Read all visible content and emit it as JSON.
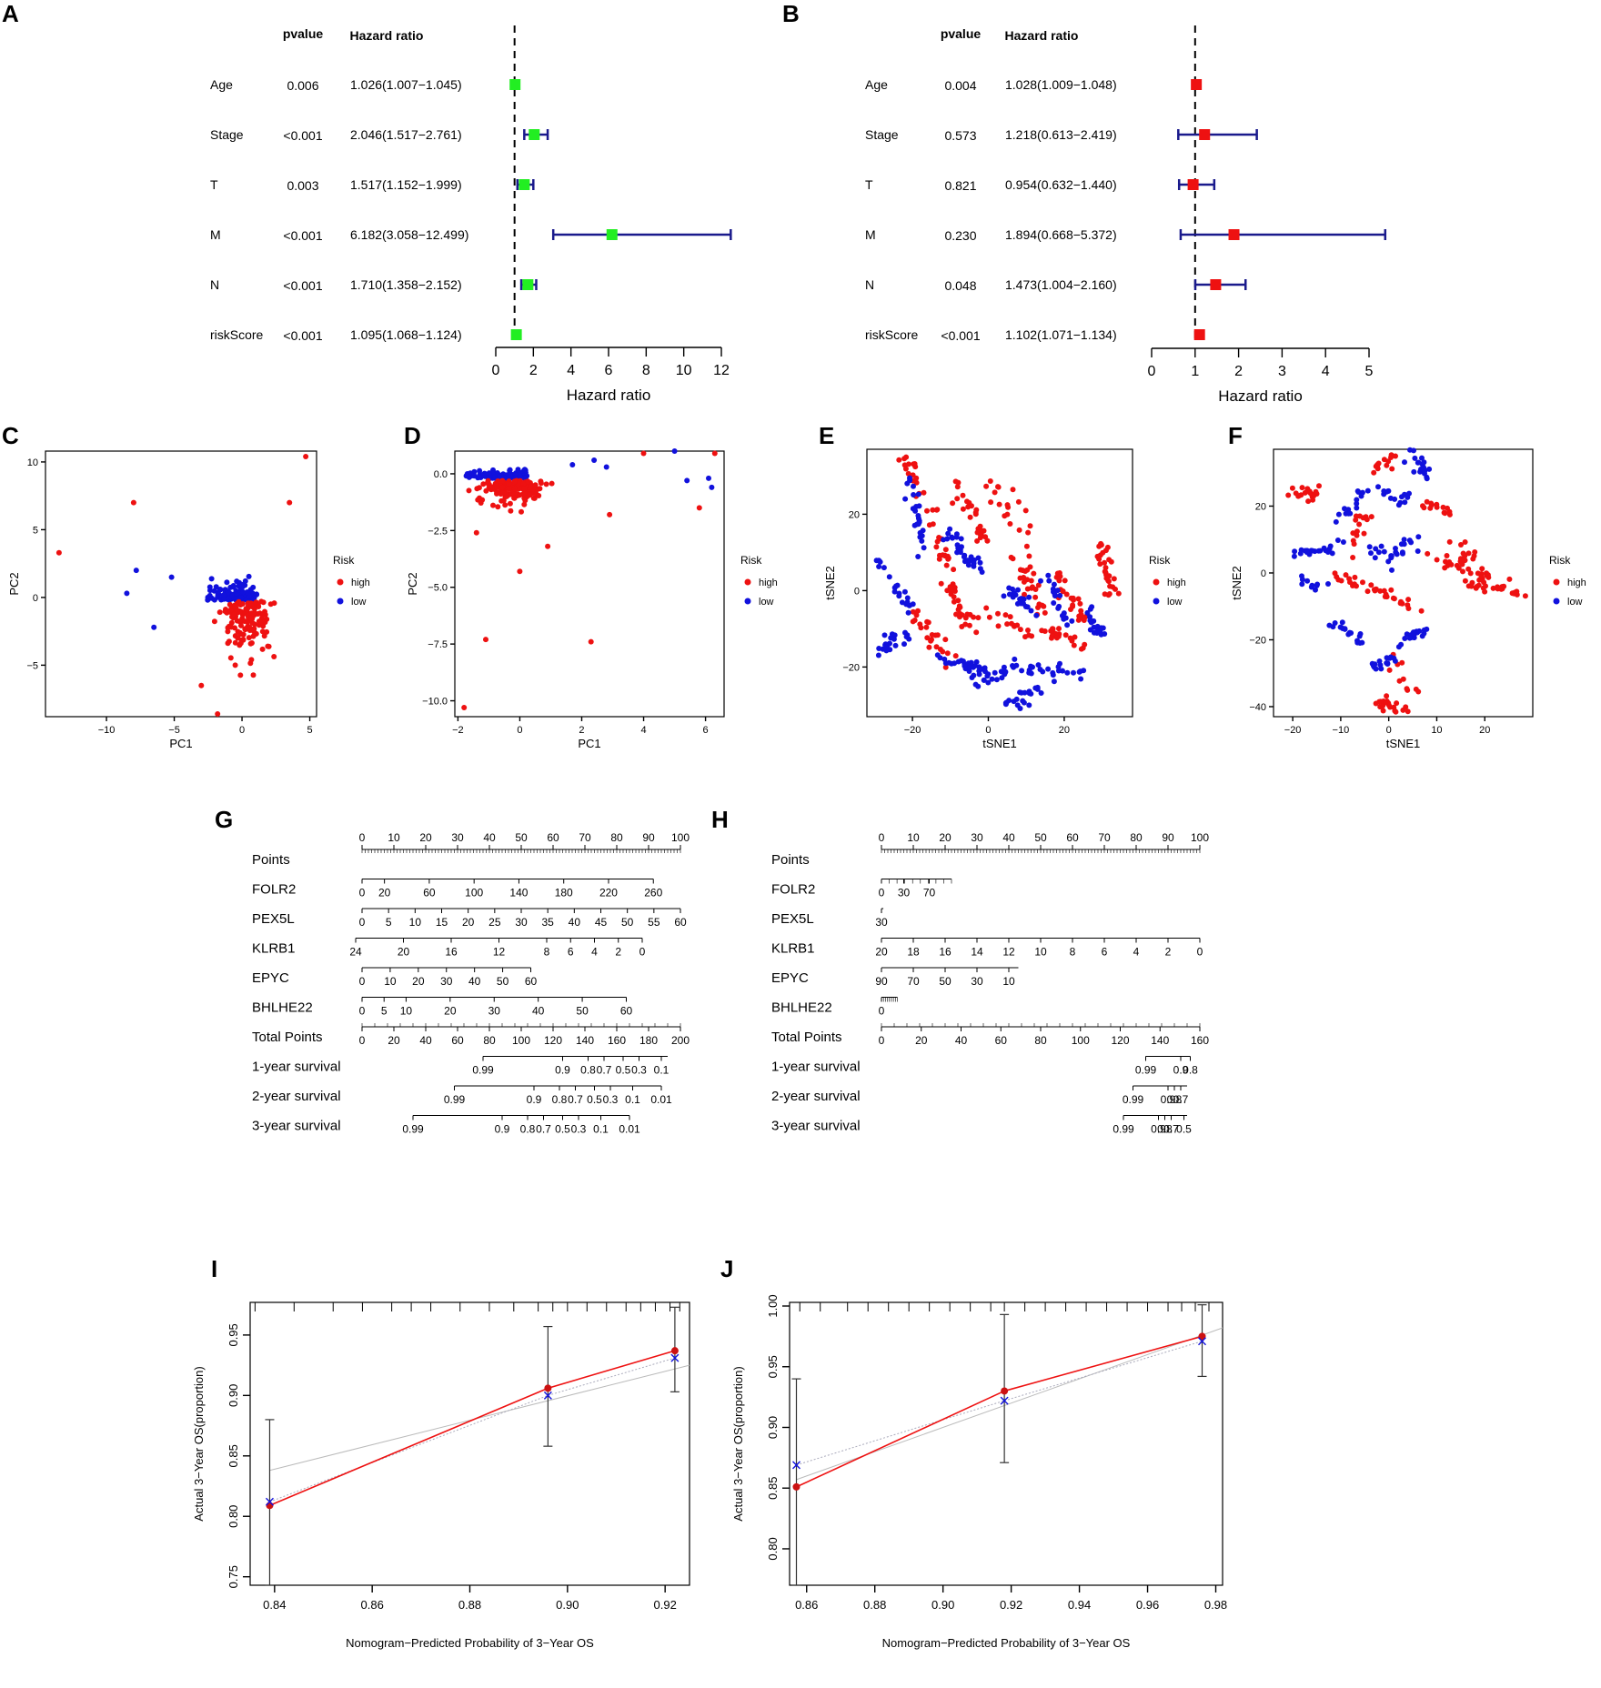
{
  "colors": {
    "green": "#22ee22",
    "red": "#ee1111",
    "blue": "#1111dd",
    "navy": "#1a1a8c",
    "grey": "#bbbbbb"
  },
  "panels": {
    "A": "A",
    "B": "B",
    "C": "C",
    "D": "D",
    "E": "E",
    "F": "F",
    "G": "G",
    "H": "H",
    "I": "I",
    "J": "J"
  },
  "chart_data": [
    {
      "id": "A",
      "type": "forest",
      "header_p": "pvalue",
      "header_hr": "Hazard ratio",
      "xlabel": "Hazard ratio",
      "xlim": [
        0,
        12
      ],
      "ticks": [
        0,
        2,
        4,
        6,
        8,
        10,
        12
      ],
      "ref": 1,
      "color": "green",
      "rows": [
        {
          "var": "Age",
          "p": "0.006",
          "hr_text": "1.026(1.007−1.045)",
          "hr": 1.026,
          "lo": 1.007,
          "hi": 1.045
        },
        {
          "var": "Stage",
          "p": "<0.001",
          "hr_text": "2.046(1.517−2.761)",
          "hr": 2.046,
          "lo": 1.517,
          "hi": 2.761
        },
        {
          "var": "T",
          "p": "0.003",
          "hr_text": "1.517(1.152−1.999)",
          "hr": 1.517,
          "lo": 1.152,
          "hi": 1.999
        },
        {
          "var": "M",
          "p": "<0.001",
          "hr_text": "6.182(3.058−12.499)",
          "hr": 6.182,
          "lo": 3.058,
          "hi": 12.499
        },
        {
          "var": "N",
          "p": "<0.001",
          "hr_text": "1.710(1.358−2.152)",
          "hr": 1.71,
          "lo": 1.358,
          "hi": 2.152
        },
        {
          "var": "riskScore",
          "p": "<0.001",
          "hr_text": "1.095(1.068−1.124)",
          "hr": 1.095,
          "lo": 1.068,
          "hi": 1.124
        }
      ]
    },
    {
      "id": "B",
      "type": "forest",
      "header_p": "pvalue",
      "header_hr": "Hazard ratio",
      "xlabel": "Hazard ratio",
      "xlim": [
        0,
        5
      ],
      "ticks": [
        0,
        1,
        2,
        3,
        4,
        5
      ],
      "ref": 1,
      "color": "red",
      "rows": [
        {
          "var": "Age",
          "p": "0.004",
          "hr_text": "1.028(1.009−1.048)",
          "hr": 1.028,
          "lo": 1.009,
          "hi": 1.048
        },
        {
          "var": "Stage",
          "p": "0.573",
          "hr_text": "1.218(0.613−2.419)",
          "hr": 1.218,
          "lo": 0.613,
          "hi": 2.419
        },
        {
          "var": "T",
          "p": "0.821",
          "hr_text": "0.954(0.632−1.440)",
          "hr": 0.954,
          "lo": 0.632,
          "hi": 1.44
        },
        {
          "var": "M",
          "p": "0.230",
          "hr_text": "1.894(0.668−5.372)",
          "hr": 1.894,
          "lo": 0.668,
          "hi": 5.372
        },
        {
          "var": "N",
          "p": "0.048",
          "hr_text": "1.473(1.004−2.160)",
          "hr": 1.473,
          "lo": 1.004,
          "hi": 2.16
        },
        {
          "var": "riskScore",
          "p": "<0.001",
          "hr_text": "1.102(1.071−1.134)",
          "hr": 1.102,
          "lo": 1.071,
          "hi": 1.134
        }
      ]
    },
    {
      "id": "C",
      "type": "scatter",
      "xlabel": "PC1",
      "ylabel": "PC2",
      "xlim": [
        -14.5,
        5.5
      ],
      "ylim": [
        -8.8,
        10.8
      ],
      "xticks": [
        -10,
        -5,
        0,
        5
      ],
      "xtick_labels": [
        "−10",
        "−5",
        "0",
        "5"
      ],
      "yticks": [
        10,
        5,
        0,
        -5
      ],
      "ytick_labels": [
        "10",
        "5",
        "0",
        "−5"
      ],
      "legend": {
        "title": "Risk",
        "items": [
          "high",
          "low"
        ]
      },
      "cluster": {
        "center": [
          0.3,
          -0.3
        ],
        "spread": [
          1.1,
          1.6
        ],
        "n_high": 140,
        "n_low": 110
      },
      "outliers_high": [
        [
          -13.5,
          3.3
        ],
        [
          -8,
          7
        ],
        [
          4.7,
          10.4
        ],
        [
          3.5,
          7
        ],
        [
          -3,
          -6.5
        ],
        [
          -1.8,
          -8.6
        ],
        [
          -0.5,
          -5
        ]
      ],
      "outliers_low": [
        [
          -8.5,
          0.3
        ],
        [
          -7.8,
          2
        ],
        [
          -6.5,
          -2.2
        ],
        [
          -5.2,
          1.5
        ]
      ]
    },
    {
      "id": "D",
      "type": "scatter",
      "xlabel": "PC1",
      "ylabel": "PC2",
      "xlim": [
        -2.1,
        6.6
      ],
      "ylim": [
        -10.7,
        1.0
      ],
      "xticks": [
        -2,
        0,
        2,
        4,
        6
      ],
      "xtick_labels": [
        "−2",
        "0",
        "2",
        "4",
        "6"
      ],
      "yticks": [
        0,
        -2.5,
        -5,
        -7.5,
        -10
      ],
      "ytick_labels": [
        "0.0",
        "−2.5",
        "−5.0",
        "−7.5",
        "−10.0"
      ],
      "legend": {
        "title": "Risk",
        "items": [
          "high",
          "low"
        ]
      },
      "cluster": {
        "center": [
          -0.2,
          -0.3
        ],
        "spread": [
          0.6,
          0.45
        ],
        "n_high": 150,
        "n_low": 130
      },
      "outliers_high": [
        [
          -1.8,
          -10.3
        ],
        [
          -1.1,
          -7.3
        ],
        [
          2.3,
          -7.4
        ],
        [
          0.0,
          -4.3
        ],
        [
          0.9,
          -3.2
        ],
        [
          2.9,
          -1.8
        ],
        [
          6.3,
          0.9
        ],
        [
          4.0,
          0.9
        ],
        [
          5.8,
          -1.5
        ],
        [
          -1.4,
          -2.6
        ]
      ],
      "outliers_low": [
        [
          5.0,
          1.0
        ],
        [
          6.1,
          -0.2
        ],
        [
          6.2,
          -0.6
        ],
        [
          5.4,
          -0.3
        ],
        [
          2.4,
          0.6
        ],
        [
          2.8,
          0.3
        ],
        [
          1.7,
          0.4
        ]
      ]
    },
    {
      "id": "E",
      "type": "scatter",
      "xlabel": "tSNE1",
      "ylabel": "tSNE2",
      "xlim": [
        -32,
        38
      ],
      "ylim": [
        -33,
        37
      ],
      "xticks": [
        -20,
        0,
        20
      ],
      "xtick_labels": [
        "−20",
        "0",
        "20"
      ],
      "yticks": [
        20,
        0,
        -20
      ],
      "ytick_labels": [
        "20",
        "0",
        "−20"
      ],
      "legend": {
        "title": "Risk",
        "items": [
          "high",
          "low"
        ]
      },
      "n_high": 260,
      "n_low": 250
    },
    {
      "id": "F",
      "type": "scatter",
      "xlabel": "tSNE1",
      "ylabel": "tSNE2",
      "xlim": [
        -24,
        30
      ],
      "ylim": [
        -43,
        37
      ],
      "xticks": [
        -20,
        -10,
        0,
        10,
        20
      ],
      "xtick_labels": [
        "−20",
        "−10",
        "0",
        "10",
        "20"
      ],
      "yticks": [
        20,
        0,
        -20,
        -40
      ],
      "ytick_labels": [
        "20",
        "0",
        "−20",
        "−40"
      ],
      "legend": {
        "title": "Risk",
        "items": [
          "high",
          "low"
        ]
      },
      "n_high": 190,
      "n_low": 160
    },
    {
      "id": "G",
      "type": "nomogram",
      "rows": [
        {
          "label": "Points",
          "ticks": [
            "0",
            "10",
            "20",
            "30",
            "40",
            "50",
            "60",
            "70",
            "80",
            "90",
            "100"
          ],
          "range": [
            0,
            100
          ],
          "x0": 0,
          "x1": 100,
          "minor": 1,
          "above": true
        },
        {
          "label": "FOLR2",
          "ticks": [
            "0",
            "20",
            "60",
            "100",
            "140",
            "180",
            "220",
            "260"
          ],
          "values": [
            0,
            20,
            60,
            100,
            140,
            180,
            220,
            260
          ],
          "range": [
            0,
            260
          ],
          "x0": 0,
          "x1": 91.5
        },
        {
          "label": "PEX5L",
          "ticks": [
            "0",
            "5",
            "10",
            "15",
            "20",
            "25",
            "30",
            "35",
            "40",
            "45",
            "50",
            "55",
            "60"
          ],
          "values": [
            0,
            5,
            10,
            15,
            20,
            25,
            30,
            35,
            40,
            45,
            50,
            55,
            60
          ],
          "range": [
            0,
            60
          ],
          "x0": 0,
          "x1": 100
        },
        {
          "label": "KLRB1",
          "ticks": [
            "24",
            "20",
            "16",
            "12",
            "8",
            "6",
            "4",
            "2",
            "0"
          ],
          "values": [
            24,
            20,
            16,
            12,
            8,
            6,
            4,
            2,
            0
          ],
          "range": [
            24,
            0
          ],
          "x0": -2,
          "x1": 88
        },
        {
          "label": "EPYC",
          "ticks": [
            "0",
            "10",
            "20",
            "30",
            "40",
            "50",
            "60"
          ],
          "values": [
            0,
            10,
            20,
            30,
            40,
            50,
            60
          ],
          "range": [
            0,
            60
          ],
          "x0": 0,
          "x1": 53
        },
        {
          "label": "BHLHE22",
          "ticks": [
            "0",
            "5",
            "10",
            "20",
            "30",
            "40",
            "50",
            "60"
          ],
          "values": [
            0,
            5,
            10,
            20,
            30,
            40,
            50,
            60
          ],
          "range": [
            0,
            60
          ],
          "x0": 0,
          "x1": 83
        },
        {
          "label": "Total Points",
          "ticks": [
            "0",
            "20",
            "40",
            "60",
            "80",
            "100",
            "120",
            "140",
            "160",
            "180",
            "200"
          ],
          "range": [
            0,
            200
          ],
          "x0": 0,
          "x1": 100,
          "minor": 4
        },
        {
          "label": "1-year survival",
          "ticks": [
            "0.99",
            "0.9",
            "0.8",
            "0.7",
            "0.5",
            "0.3",
            "0.1"
          ],
          "positions": [
            38,
            63,
            71,
            76,
            82,
            87,
            94
          ],
          "x0": 38,
          "x1": 96
        },
        {
          "label": "2-year survival",
          "ticks": [
            "0.99",
            "0.9",
            "0.8",
            "0.7",
            "0.5",
            "0.3",
            "0.1",
            "0.01"
          ],
          "positions": [
            29,
            54,
            62,
            67,
            73,
            78,
            85,
            94
          ],
          "x0": 29,
          "x1": 94
        },
        {
          "label": "3-year survival",
          "ticks": [
            "0.99",
            "0.9",
            "0.8",
            "0.7",
            "0.5",
            "0.3",
            "0.1",
            "0.01"
          ],
          "positions": [
            16,
            44,
            52,
            57,
            63,
            68,
            75,
            84
          ],
          "x0": 16,
          "x1": 84
        }
      ]
    },
    {
      "id": "H",
      "type": "nomogram",
      "rows": [
        {
          "label": "Points",
          "ticks": [
            "0",
            "10",
            "20",
            "30",
            "40",
            "50",
            "60",
            "70",
            "80",
            "90",
            "100"
          ],
          "range": [
            0,
            100
          ],
          "x0": 0,
          "x1": 100,
          "minor": 1,
          "above": true
        },
        {
          "label": "FOLR2",
          "ticks": [
            "0",
            "30",
            "70"
          ],
          "positions": [
            0,
            7,
            15
          ],
          "x0": 0,
          "x1": 22,
          "minor_n": 9
        },
        {
          "label": "PEX5L",
          "ticks": [
            "30"
          ],
          "positions": [
            0
          ],
          "x0": 0,
          "x1": 0.6
        },
        {
          "label": "KLRB1",
          "ticks": [
            "20",
            "18",
            "16",
            "14",
            "12",
            "10",
            "8",
            "6",
            "4",
            "2",
            "0"
          ],
          "range": [
            20,
            0
          ],
          "x0": 0,
          "x1": 100
        },
        {
          "label": "EPYC",
          "ticks": [
            "90",
            "70",
            "50",
            "30",
            "10"
          ],
          "positions": [
            0,
            10,
            20,
            30,
            40
          ],
          "x0": 0,
          "x1": 43
        },
        {
          "label": "BHLHE22",
          "ticks": [
            "0"
          ],
          "positions": [
            0
          ],
          "x0": 0,
          "x1": 5,
          "minor_n": 8
        },
        {
          "label": "Total Points",
          "ticks": [
            "0",
            "20",
            "40",
            "60",
            "80",
            "100",
            "120",
            "140",
            "160"
          ],
          "range": [
            0,
            160
          ],
          "x0": 0,
          "x1": 100,
          "minor": 4
        },
        {
          "label": "1-year survival",
          "ticks": [
            "0.99",
            "0.9",
            "0.8"
          ],
          "positions": [
            83,
            94,
            97
          ],
          "x0": 83,
          "x1": 97
        },
        {
          "label": "2-year survival",
          "ticks": [
            "0.99",
            "0.9",
            "0.8",
            "0.7"
          ],
          "positions": [
            79,
            90,
            92,
            94
          ],
          "x0": 79,
          "x1": 96
        },
        {
          "label": "3-year survival",
          "ticks": [
            "0.99",
            "0.9",
            "0.8",
            "0.7",
            "0.5"
          ],
          "positions": [
            76,
            87,
            89,
            91,
            95
          ],
          "x0": 76,
          "x1": 96
        }
      ]
    },
    {
      "id": "I",
      "type": "calibration",
      "xlabel": "Nomogram−Predicted Probability of 3−Year OS",
      "ylabel": "Actual 3−Year OS(proportion)",
      "xlim": [
        0.835,
        0.925
      ],
      "ylim": [
        0.743,
        0.977
      ],
      "xticks": [
        0.84,
        0.86,
        0.88,
        0.9,
        0.92
      ],
      "xtick_labels": [
        "0.84",
        "0.86",
        "0.88",
        "0.90",
        "0.92"
      ],
      "yticks": [
        0.75,
        0.8,
        0.85,
        0.9,
        0.95
      ],
      "ytick_labels": [
        "0.75",
        "0.80",
        "0.85",
        "0.90",
        "0.95"
      ],
      "points": [
        {
          "x": 0.839,
          "y": 0.809,
          "lo": 0.743,
          "hi": 0.88,
          "xcorr": 0.812
        },
        {
          "x": 0.896,
          "y": 0.906,
          "lo": 0.858,
          "hi": 0.957,
          "xcorr": 0.9
        },
        {
          "x": 0.922,
          "y": 0.937,
          "lo": 0.903,
          "hi": 0.973,
          "xcorr": 0.931
        }
      ],
      "ideal": [
        [
          0.839,
          0.838
        ],
        [
          0.925,
          0.925
        ]
      ],
      "top_ticks": [
        0.836,
        0.844,
        0.852,
        0.858,
        0.864,
        0.868,
        0.872,
        0.878,
        0.884,
        0.889,
        0.894,
        0.897,
        0.9,
        0.904,
        0.908,
        0.912,
        0.915,
        0.918,
        0.921,
        0.923
      ]
    },
    {
      "id": "J",
      "type": "calibration",
      "xlabel": "Nomogram−Predicted Probability of 3−Year OS",
      "ylabel": "Actual 3−Year OS(proportion)",
      "xlim": [
        0.855,
        0.982
      ],
      "ylim": [
        0.77,
        1.003
      ],
      "xticks": [
        0.86,
        0.88,
        0.9,
        0.92,
        0.94,
        0.96,
        0.98
      ],
      "xtick_labels": [
        "0.86",
        "0.88",
        "0.90",
        "0.92",
        "0.94",
        "0.96",
        "0.98"
      ],
      "yticks": [
        0.8,
        0.85,
        0.9,
        0.95,
        1.0
      ],
      "ytick_labels": [
        "0.80",
        "0.85",
        "0.90",
        "0.95",
        "1.00"
      ],
      "points": [
        {
          "x": 0.857,
          "y": 0.851,
          "lo": 0.77,
          "hi": 0.94,
          "xcorr": 0.869
        },
        {
          "x": 0.918,
          "y": 0.93,
          "lo": 0.871,
          "hi": 0.993,
          "xcorr": 0.922
        },
        {
          "x": 0.976,
          "y": 0.975,
          "lo": 0.942,
          "hi": 1.001,
          "xcorr": 0.971
        }
      ],
      "ideal": [
        [
          0.857,
          0.857
        ],
        [
          0.982,
          0.982
        ]
      ],
      "top_ticks": [
        0.858,
        0.864,
        0.872,
        0.878,
        0.884,
        0.89,
        0.896,
        0.902,
        0.908,
        0.914,
        0.918,
        0.924,
        0.93,
        0.936,
        0.942,
        0.948,
        0.954,
        0.96,
        0.966,
        0.97,
        0.974,
        0.978
      ]
    }
  ]
}
